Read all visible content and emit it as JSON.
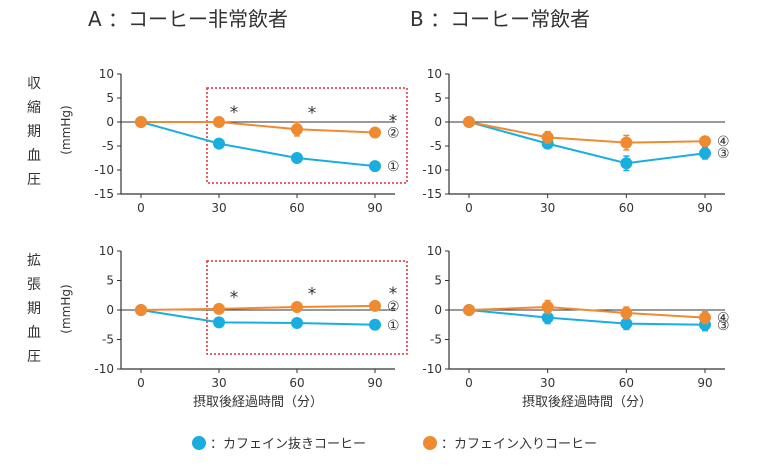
{
  "colors": {
    "decaf": "#1AAEE0",
    "caffeine": "#F08A30",
    "highlight_box": "#E03030",
    "axis": "#333333"
  },
  "labels": {
    "xlabel": "摂取後経過時間（分）",
    "ylabel_unit": "(mmHg)",
    "row_systolic": [
      "収",
      "縮",
      "期",
      "血",
      "圧"
    ],
    "row_diastolic": [
      "拡",
      "張",
      "期",
      "血",
      "圧"
    ]
  },
  "legend": {
    "decaf": "：カフェイン抜きコーヒー",
    "caffeine": "：カフェイン入りコーヒー"
  },
  "chart_data": [
    {
      "id": "A-top",
      "type": "line",
      "title": "A ：コーヒー非常飲者",
      "xlabel": "",
      "ylabel": "(mmHg)",
      "x": [
        0,
        30,
        60,
        90
      ],
      "xticks": [
        "0",
        "30",
        "60",
        "90"
      ],
      "ylim": [
        -15,
        10
      ],
      "yticks": [
        "10",
        "5",
        "0",
        "-5",
        "-10",
        "-15"
      ],
      "highlight_box": true,
      "series": [
        {
          "name": "カフェイン入りコーヒー",
          "marker": "②",
          "values": [
            0,
            0,
            -1.5,
            -2.2
          ],
          "err": [
            0,
            0,
            1.4,
            0.4
          ]
        },
        {
          "name": "カフェイン抜きコーヒー",
          "marker": "①",
          "values": [
            0,
            -4.5,
            -7.5,
            -9.2
          ],
          "err": [
            0,
            0,
            0,
            0
          ]
        }
      ],
      "significance": [
        {
          "x": 30,
          "label": "*"
        },
        {
          "x": 60,
          "label": "*"
        },
        {
          "x": 90,
          "label": "*"
        }
      ]
    },
    {
      "id": "B-top",
      "type": "line",
      "title": "B ：コーヒー常飲者",
      "xlabel": "",
      "ylabel": "",
      "x": [
        0,
        30,
        60,
        90
      ],
      "xticks": [
        "0",
        "30",
        "60",
        "90"
      ],
      "ylim": [
        -15,
        10
      ],
      "yticks": [
        "10",
        "5",
        "0",
        "-5",
        "-10",
        "-15"
      ],
      "highlight_box": false,
      "series": [
        {
          "name": "カフェイン入りコーヒー",
          "marker": "④",
          "values": [
            0,
            -3.2,
            -4.3,
            -4.0
          ],
          "err": [
            0,
            1.2,
            1.5,
            0.4
          ]
        },
        {
          "name": "カフェイン抜きコーヒー",
          "marker": "③",
          "values": [
            0,
            -4.5,
            -8.6,
            -6.5
          ],
          "err": [
            0,
            0.8,
            1.5,
            1.2
          ]
        }
      ],
      "significance": []
    },
    {
      "id": "A-bottom",
      "type": "line",
      "title": "",
      "xlabel": "摂取後経過時間（分）",
      "ylabel": "(mmHg)",
      "x": [
        0,
        30,
        60,
        90
      ],
      "xticks": [
        "0",
        "30",
        "60",
        "90"
      ],
      "ylim": [
        -10,
        10
      ],
      "yticks": [
        "10",
        "5",
        "0",
        "-5",
        "-10"
      ],
      "highlight_box": true,
      "series": [
        {
          "name": "カフェイン入りコーヒー",
          "marker": "②",
          "values": [
            0,
            0.2,
            0.5,
            0.7
          ],
          "err": [
            0,
            0.3,
            0.6,
            0.5
          ]
        },
        {
          "name": "カフェイン抜きコーヒー",
          "marker": "①",
          "values": [
            0,
            -2.1,
            -2.2,
            -2.5
          ],
          "err": [
            0,
            0.3,
            0.5,
            0.3
          ]
        }
      ],
      "significance": [
        {
          "x": 30,
          "label": "*"
        },
        {
          "x": 60,
          "label": "*"
        },
        {
          "x": 90,
          "label": "*"
        }
      ]
    },
    {
      "id": "B-bottom",
      "type": "line",
      "title": "",
      "xlabel": "摂取後経過時間（分）",
      "ylabel": "",
      "x": [
        0,
        30,
        60,
        90
      ],
      "xticks": [
        "0",
        "30",
        "60",
        "90"
      ],
      "ylim": [
        -10,
        10
      ],
      "yticks": [
        "10",
        "5",
        "0",
        "-5",
        "-10"
      ],
      "highlight_box": false,
      "series": [
        {
          "name": "カフェイン入りコーヒー",
          "marker": "④",
          "values": [
            0,
            0.5,
            -0.5,
            -1.3
          ],
          "err": [
            0,
            1.1,
            1.0,
            1.0
          ]
        },
        {
          "name": "カフェイン抜きコーヒー",
          "marker": "③",
          "values": [
            0,
            -1.3,
            -2.3,
            -2.5
          ],
          "err": [
            0,
            1.0,
            1.0,
            1.0
          ]
        }
      ],
      "significance": []
    }
  ]
}
